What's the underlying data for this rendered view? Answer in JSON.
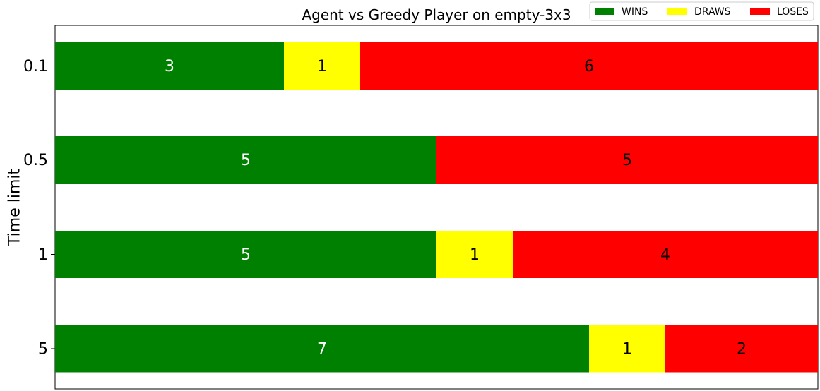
{
  "chart_data": {
    "type": "bar",
    "orientation": "horizontal",
    "stacked": true,
    "title": "Agent vs Greedy Player on empty-3x3",
    "xlabel": "",
    "ylabel": "Time limit",
    "categories": [
      "0.1",
      "0.5",
      "1",
      "5"
    ],
    "series": [
      {
        "name": "WINS",
        "color": "#008000",
        "label_color": "#ffffff",
        "values": [
          3,
          5,
          5,
          7
        ]
      },
      {
        "name": "DRAWS",
        "color": "#ffff00",
        "label_color": "#000000",
        "values": [
          1,
          0,
          1,
          1
        ]
      },
      {
        "name": "LOSES",
        "color": "#ff0000",
        "label_color": "#000000",
        "values": [
          6,
          5,
          4,
          2
        ]
      }
    ],
    "xlim": [
      0,
      10
    ],
    "x_ticks_visible": false,
    "grid": false,
    "legend": {
      "position": "top-right",
      "columns": 3
    }
  }
}
